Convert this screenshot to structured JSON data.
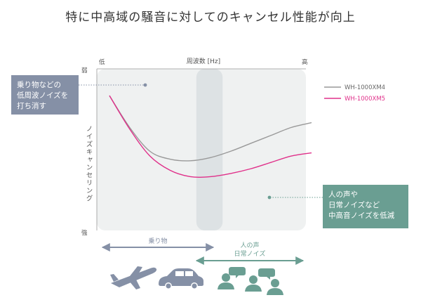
{
  "headline": "特に中高域の騒音に対してのキャンセル性能が向上",
  "chart_data": {
    "type": "line",
    "xlabel": "周波数 [Hz]",
    "x_axis_end_labels": {
      "low": "低",
      "high": "高"
    },
    "ylabel": "ノイズキャンセリング",
    "y_axis_end_labels": {
      "top": "弱",
      "bottom": "強"
    },
    "x": [
      0,
      0.1,
      0.2,
      0.3,
      0.4,
      0.5,
      0.6,
      0.7,
      0.8,
      0.9,
      1.0
    ],
    "xlim": [
      0,
      1
    ],
    "ylim": [
      0,
      1
    ],
    "series": [
      {
        "name": "WH-1000XM4",
        "color": "#999999",
        "values": [
          0.84,
          0.64,
          0.49,
          0.44,
          0.43,
          0.45,
          0.49,
          0.54,
          0.59,
          0.64,
          0.67
        ]
      },
      {
        "name": "WH-1000XM5",
        "color": "#e0308a",
        "values": [
          0.84,
          0.63,
          0.46,
          0.37,
          0.33,
          0.33,
          0.35,
          0.38,
          0.42,
          0.46,
          0.48
        ]
      }
    ],
    "legend_position": "top-right",
    "highlight_band_x": [
      0.43,
      0.56
    ]
  },
  "ranges": {
    "vehicle_label": "乗り物",
    "voice_label_line1": "人の声",
    "voice_label_line2": "日常ノイズ",
    "vehicle_color": "#8590a6",
    "voice_color": "#6a9e92"
  },
  "callouts": {
    "low_line1": "乗り物などの",
    "low_line2": "低周波ノイズを",
    "low_line3": "打ち消す",
    "high_line1": "人の声や",
    "high_line2": "日常ノイズなど",
    "high_line3": "中高音ノイズを低減"
  },
  "icons": {
    "vehicle": [
      "airplane-icon",
      "car-icon"
    ],
    "voice": [
      "talking-people-icon"
    ]
  }
}
